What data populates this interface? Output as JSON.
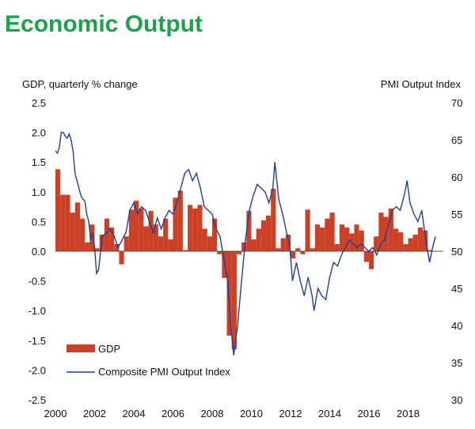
{
  "page": {
    "title": "Economic Output"
  },
  "colors": {
    "title": "#1aa34a",
    "bars": "#cc4125",
    "line": "#1f3f8f"
  },
  "chart_data": {
    "type": "bar+line",
    "title": "Economic Output",
    "ylabel_left": "GDP, quarterly % change",
    "ylabel_right": "PMI Output  Index",
    "ylim_left": [
      -2.5,
      2.5
    ],
    "ylim_right": [
      30,
      70
    ],
    "yticks_left": [
      "2.5",
      "2.0",
      "1.5",
      "1.0",
      "0.5",
      "0.0",
      "-0.5",
      "-1.0",
      "-1.5",
      "-2.0",
      "-2.5"
    ],
    "yticks_right": [
      "70",
      "65",
      "60",
      "55",
      "50",
      "45",
      "40",
      "35",
      "30"
    ],
    "xlim": [
      2000,
      2019.8
    ],
    "xticks": [
      "2000",
      "2002",
      "2004",
      "2006",
      "2008",
      "2010",
      "2012",
      "2014",
      "2016",
      "2018"
    ],
    "series": [
      {
        "name": "GDP",
        "type": "bar",
        "axis": "left",
        "x": [
          2000.0,
          2000.25,
          2000.5,
          2000.75,
          2001.0,
          2001.25,
          2001.5,
          2001.75,
          2002.0,
          2002.25,
          2002.5,
          2002.75,
          2003.0,
          2003.25,
          2003.5,
          2003.75,
          2004.0,
          2004.25,
          2004.5,
          2004.75,
          2005.0,
          2005.25,
          2005.5,
          2005.75,
          2006.0,
          2006.25,
          2006.5,
          2006.75,
          2007.0,
          2007.25,
          2007.5,
          2007.75,
          2008.0,
          2008.25,
          2008.5,
          2008.75,
          2009.0,
          2009.25,
          2009.5,
          2009.75,
          2010.0,
          2010.25,
          2010.5,
          2010.75,
          2011.0,
          2011.25,
          2011.5,
          2011.75,
          2012.0,
          2012.25,
          2012.5,
          2012.75,
          2013.0,
          2013.25,
          2013.5,
          2013.75,
          2014.0,
          2014.25,
          2014.5,
          2014.75,
          2015.0,
          2015.25,
          2015.5,
          2015.75,
          2016.0,
          2016.25,
          2016.5,
          2016.75,
          2017.0,
          2017.25,
          2017.5,
          2017.75,
          2018.0,
          2018.25,
          2018.5,
          2018.75,
          2019.0,
          2019.25
        ],
        "values": [
          1.38,
          0.95,
          0.95,
          0.65,
          0.82,
          0.55,
          0.15,
          0.45,
          0.05,
          0.28,
          0.55,
          0.4,
          0.12,
          -0.22,
          0.25,
          0.7,
          0.85,
          0.72,
          0.42,
          0.68,
          0.45,
          0.25,
          0.55,
          0.2,
          0.9,
          1.02,
          0.02,
          0.78,
          0.72,
          0.78,
          0.38,
          0.25,
          0.55,
          -0.05,
          -0.45,
          -1.42,
          -1.65,
          -0.05,
          0.15,
          0.68,
          0.2,
          0.38,
          0.52,
          0.6,
          1.05,
          0.05,
          0.22,
          0.28,
          -0.12,
          0.05,
          -0.05,
          0.7,
          0.05,
          0.45,
          0.4,
          0.55,
          0.65,
          0.12,
          0.45,
          0.4,
          0.3,
          0.45,
          0.35,
          -0.18,
          -0.3,
          0.25,
          0.65,
          0.58,
          0.72,
          0.38,
          0.32,
          0.12,
          0.22,
          0.28,
          0.4,
          0.35,
          0.02,
          0.0
        ]
      },
      {
        "name": "Composite PMI Output Index",
        "type": "line",
        "axis": "right",
        "x": [
          2000.0,
          2000.1,
          2000.2,
          2000.3,
          2000.4,
          2000.5,
          2000.6,
          2000.7,
          2000.8,
          2000.9,
          2001.0,
          2001.1,
          2001.2,
          2001.3,
          2001.4,
          2001.5,
          2001.6,
          2001.7,
          2001.8,
          2001.9,
          2002.0,
          2002.1,
          2002.2,
          2002.4,
          2002.6,
          2002.8,
          2003.0,
          2003.2,
          2003.4,
          2003.6,
          2003.8,
          2004.0,
          2004.2,
          2004.4,
          2004.6,
          2004.8,
          2005.0,
          2005.2,
          2005.4,
          2005.6,
          2005.8,
          2006.0,
          2006.2,
          2006.4,
          2006.6,
          2006.8,
          2007.0,
          2007.2,
          2007.4,
          2007.6,
          2007.8,
          2008.0,
          2008.2,
          2008.4,
          2008.6,
          2008.8,
          2008.95,
          2009.1,
          2009.3,
          2009.5,
          2009.7,
          2009.9,
          2010.1,
          2010.3,
          2010.5,
          2010.7,
          2010.9,
          2011.1,
          2011.2,
          2011.4,
          2011.6,
          2011.8,
          2011.95,
          2012.1,
          2012.3,
          2012.5,
          2012.7,
          2012.9,
          2013.1,
          2013.2,
          2013.4,
          2013.6,
          2013.8,
          2014.0,
          2014.2,
          2014.4,
          2014.6,
          2014.8,
          2015.0,
          2015.2,
          2015.4,
          2015.6,
          2015.8,
          2016.0,
          2016.2,
          2016.4,
          2016.6,
          2016.8,
          2017.0,
          2017.2,
          2017.4,
          2017.6,
          2017.8,
          2017.95,
          2018.1,
          2018.3,
          2018.5,
          2018.7,
          2018.85,
          2019.0,
          2019.1,
          2019.25,
          2019.4
        ],
        "values": [
          63.5,
          63.2,
          64.0,
          66.0,
          66.0,
          65.5,
          65.2,
          65.8,
          65.0,
          63.5,
          60.5,
          59.5,
          58.5,
          57.5,
          57.0,
          56.8,
          55.0,
          54.0,
          51.5,
          52.5,
          50.5,
          47.0,
          47.5,
          52.0,
          52.5,
          53.0,
          52.0,
          50.5,
          51.5,
          52.5,
          55.5,
          56.5,
          55.0,
          56.0,
          55.5,
          54.0,
          52.5,
          54.5,
          53.0,
          54.5,
          55.5,
          55.0,
          56.5,
          58.5,
          60.5,
          61.0,
          59.5,
          60.5,
          58.5,
          56.0,
          55.5,
          55.0,
          53.0,
          52.0,
          49.0,
          46.0,
          40.0,
          36.0,
          40.0,
          46.0,
          51.5,
          55.5,
          57.5,
          59.0,
          58.5,
          58.0,
          56.5,
          58.5,
          62.0,
          57.0,
          55.0,
          52.5,
          51.0,
          46.0,
          48.5,
          46.0,
          44.0,
          46.5,
          44.0,
          42.0,
          45.0,
          44.0,
          43.5,
          46.5,
          48.5,
          48.0,
          49.5,
          50.5,
          51.5,
          51.0,
          50.5,
          51.0,
          50.5,
          50.0,
          50.5,
          49.5,
          51.0,
          51.5,
          53.5,
          55.5,
          56.0,
          55.5,
          57.5,
          59.5,
          56.5,
          55.0,
          54.0,
          55.5,
          52.5,
          50.0,
          48.5,
          50.5,
          52.0
        ]
      }
    ],
    "legend": {
      "position": "bottom-left",
      "entries": [
        "GDP",
        "Composite PMI Output Index"
      ]
    }
  }
}
